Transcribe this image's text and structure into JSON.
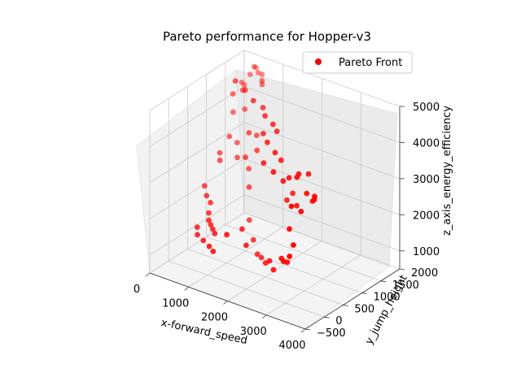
{
  "chart_data": {
    "type": "scatter",
    "title": "Pareto performance for Hopper-v3",
    "xlabel": "x-forward_speed",
    "ylabel": "y_jump_height",
    "zlabel": "z_axis_energy_efficiency",
    "xlim": [
      0,
      4000
    ],
    "ylim": [
      -500,
      2000
    ],
    "zlim": [
      500,
      5000
    ],
    "xticks": [
      "0",
      "1000",
      "2000",
      "3000",
      "4000"
    ],
    "yticks": [
      "−500",
      "0",
      "500",
      "1000",
      "1500",
      "2000"
    ],
    "zticks": [
      "1000",
      "2000",
      "3000",
      "4000",
      "5000"
    ],
    "grid": true,
    "legend_position": "upper-right",
    "series": [
      {
        "name": "Pareto Front",
        "color": "#ff0000",
        "points": [
          [
            300,
            1950,
            4700
          ],
          [
            400,
            1900,
            4750
          ],
          [
            500,
            1850,
            4680
          ],
          [
            650,
            1800,
            4720
          ],
          [
            750,
            1700,
            4650
          ],
          [
            800,
            1650,
            4600
          ],
          [
            250,
            1900,
            4500
          ],
          [
            150,
            1850,
            4200
          ],
          [
            180,
            1750,
            4350
          ],
          [
            100,
            1600,
            4100
          ],
          [
            350,
            1600,
            4300
          ],
          [
            500,
            1500,
            3900
          ],
          [
            200,
            1500,
            3700
          ],
          [
            550,
            1200,
            4900
          ],
          [
            900,
            1100,
            4850
          ],
          [
            1400,
            800,
            4950
          ],
          [
            1600,
            850,
            4800
          ],
          [
            1800,
            700,
            4750
          ],
          [
            2100,
            600,
            4700
          ],
          [
            2300,
            500,
            4650
          ],
          [
            1900,
            550,
            4400
          ],
          [
            2100,
            450,
            4300
          ],
          [
            2400,
            350,
            4200
          ],
          [
            2600,
            300,
            4100
          ],
          [
            2200,
            250,
            3900
          ],
          [
            2500,
            200,
            3800
          ],
          [
            2800,
            150,
            3700
          ],
          [
            3000,
            100,
            3900
          ],
          [
            3200,
            150,
            4050
          ],
          [
            3500,
            100,
            4200
          ],
          [
            3300,
            0,
            4100
          ],
          [
            3600,
            -50,
            3800
          ],
          [
            3800,
            -100,
            3700
          ],
          [
            3900,
            -150,
            3900
          ],
          [
            3700,
            50,
            3600
          ],
          [
            3600,
            -200,
            3400
          ],
          [
            3400,
            -250,
            3500
          ],
          [
            2900,
            300,
            3300
          ],
          [
            2700,
            350,
            3000
          ],
          [
            3100,
            200,
            3100
          ],
          [
            3300,
            -200,
            2800
          ],
          [
            3500,
            -300,
            2500
          ],
          [
            3450,
            -350,
            2200
          ],
          [
            3200,
            -250,
            1900
          ],
          [
            3000,
            -100,
            1800
          ],
          [
            3100,
            -50,
            1700
          ],
          [
            2400,
            200,
            1300
          ],
          [
            2600,
            100,
            1200
          ],
          [
            2200,
            300,
            1100
          ],
          [
            1900,
            500,
            1000
          ],
          [
            1700,
            600,
            950
          ],
          [
            1500,
            700,
            1200
          ],
          [
            1200,
            900,
            1500
          ],
          [
            1000,
            1100,
            2200
          ],
          [
            800,
            1300,
            2500
          ],
          [
            600,
            1200,
            2800
          ],
          [
            400,
            1400,
            3000
          ],
          [
            300,
            1300,
            3200
          ],
          [
            200,
            1150,
            2600
          ],
          [
            100,
            1250,
            2700
          ],
          [
            50,
            900,
            2000
          ],
          [
            150,
            850,
            1800
          ],
          [
            300,
            800,
            1700
          ],
          [
            350,
            700,
            1500
          ],
          [
            450,
            600,
            1400
          ],
          [
            550,
            550,
            1350
          ],
          [
            650,
            500,
            1300
          ],
          [
            750,
            450,
            1250
          ],
          [
            250,
            500,
            1200
          ],
          [
            400,
            350,
            1150
          ],
          [
            600,
            300,
            1100
          ],
          [
            800,
            250,
            1050
          ],
          [
            950,
            200,
            1000
          ],
          [
            1300,
            200,
            1600
          ],
          [
            1500,
            400,
            1700
          ],
          [
            1800,
            200,
            1500
          ],
          [
            1100,
            900,
            3200
          ],
          [
            1300,
            1000,
            3400
          ],
          [
            900,
            1200,
            3600
          ],
          [
            1000,
            1300,
            3500
          ]
        ]
      }
    ]
  }
}
